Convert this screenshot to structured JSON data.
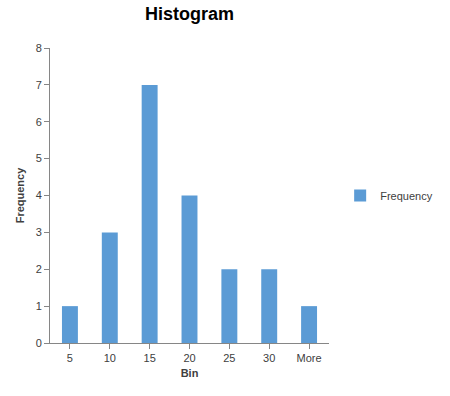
{
  "chart_data": {
    "type": "bar",
    "title": "Histogram",
    "x_label": "Bin",
    "y_label": "Frequency",
    "categories": [
      "5",
      "10",
      "15",
      "20",
      "25",
      "30",
      "More"
    ],
    "series": [
      {
        "name": "Frequency",
        "color": "#5b9bd5",
        "values": [
          1,
          3,
          7,
          4,
          2,
          2,
          1
        ]
      }
    ],
    "ylim": [
      0,
      8
    ],
    "yticks": [
      0,
      1,
      2,
      3,
      4,
      5,
      6,
      7,
      8
    ],
    "grid": false,
    "legend": "right"
  }
}
